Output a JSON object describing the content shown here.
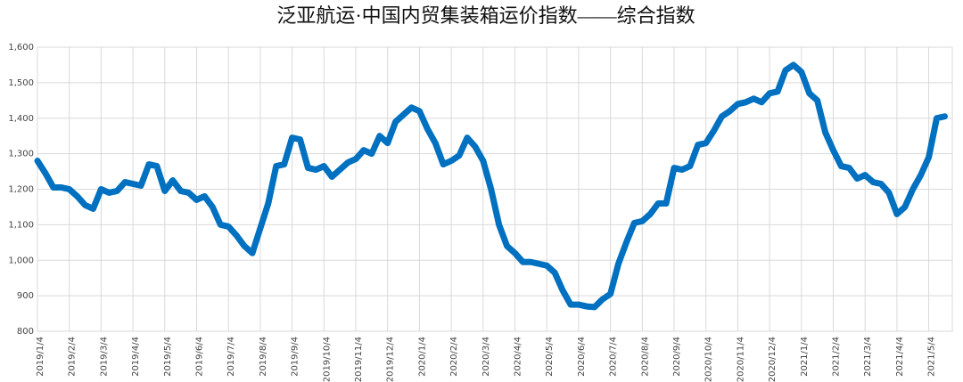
{
  "chart_data": {
    "type": "line",
    "title": "泛亚航运·中国内贸集装箱运价指数——综合指数",
    "categories": [
      "2019/1/4",
      null,
      null,
      null,
      "2019/2/4",
      null,
      null,
      null,
      "2019/3/4",
      null,
      null,
      null,
      "2019/4/4",
      null,
      null,
      null,
      "2019/5/4",
      null,
      null,
      null,
      "2019/6/4",
      null,
      null,
      null,
      "2019/7/4",
      null,
      null,
      null,
      "2019/8/4",
      null,
      null,
      null,
      "2019/9/4",
      null,
      null,
      null,
      "2019/10/4",
      null,
      null,
      null,
      "2019/11/4",
      null,
      null,
      null,
      "2019/12/4",
      null,
      null,
      null,
      "2020/1/4",
      null,
      null,
      null,
      "2020/2/4",
      null,
      null,
      null,
      "2020/3/4",
      null,
      null,
      null,
      "2020/4/4",
      null,
      null,
      null,
      "2020/5/4",
      null,
      null,
      null,
      "2020/6/4",
      null,
      null,
      null,
      "2020/7/4",
      null,
      null,
      null,
      "2020/8/4",
      null,
      null,
      null,
      "2020/9/4",
      null,
      null,
      null,
      "2020/10/4",
      null,
      null,
      null,
      "2020/11/4",
      null,
      null,
      null,
      "2020/12/4",
      null,
      null,
      null,
      "2021/1/4",
      null,
      null,
      null,
      "2021/2/4",
      null,
      null,
      null,
      "2021/3/4",
      null,
      null,
      null,
      "2021/4/4",
      null,
      null,
      null,
      "2021/5/4",
      null,
      null
    ],
    "series": [
      {
        "color": "#0070c0",
        "values": [
          1280,
          1245,
          1205,
          1205,
          1200,
          1180,
          1155,
          1145,
          1200,
          1190,
          1195,
          1220,
          1215,
          1210,
          1270,
          1265,
          1195,
          1225,
          1195,
          1190,
          1170,
          1180,
          1150,
          1100,
          1095,
          1070,
          1040,
          1020,
          1090,
          1160,
          1265,
          1270,
          1345,
          1340,
          1260,
          1255,
          1265,
          1235,
          1255,
          1275,
          1285,
          1310,
          1300,
          1350,
          1330,
          1390,
          1410,
          1430,
          1420,
          1370,
          1330,
          1270,
          1280,
          1295,
          1345,
          1320,
          1280,
          1200,
          1100,
          1040,
          1020,
          995,
          995,
          990,
          985,
          965,
          915,
          875,
          875,
          870,
          868,
          890,
          905,
          990,
          1050,
          1105,
          1110,
          1130,
          1160,
          1160,
          1260,
          1255,
          1265,
          1325,
          1330,
          1365,
          1405,
          1420,
          1440,
          1445,
          1455,
          1445,
          1470,
          1475,
          1535,
          1550,
          1530,
          1470,
          1450,
          1360,
          1310,
          1265,
          1260,
          1230,
          1240,
          1220,
          1215,
          1190,
          1130,
          1150,
          1200,
          1240,
          1290,
          1400,
          1405
        ]
      }
    ],
    "ylim": [
      800,
      1600
    ],
    "yticks": [
      800,
      900,
      {
        "value": 1000,
        "label": "1,000"
      },
      {
        "value": 1100,
        "label": "1,100"
      },
      {
        "value": 1200,
        "label": "1,200"
      },
      {
        "value": 1300,
        "label": "1,300"
      },
      {
        "value": 1400,
        "label": "1,400"
      },
      {
        "value": 1500,
        "label": "1,500"
      },
      {
        "value": 1600,
        "label": "1,600"
      }
    ],
    "grid": true
  }
}
